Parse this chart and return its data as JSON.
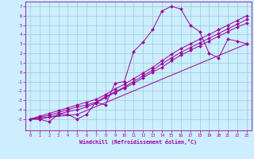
{
  "title": "",
  "xlabel": "Windchill (Refroidissement éolien,°C)",
  "background_color": "#cceeff",
  "grid_color": "#99cccc",
  "line_color": "#990099",
  "xlim": [
    -0.5,
    23.5
  ],
  "ylim": [
    -6.2,
    7.5
  ],
  "xticks": [
    0,
    1,
    2,
    3,
    4,
    5,
    6,
    7,
    8,
    9,
    10,
    11,
    12,
    13,
    14,
    15,
    16,
    17,
    18,
    19,
    20,
    21,
    22,
    23
  ],
  "yticks": [
    -5,
    -4,
    -3,
    -2,
    -1,
    0,
    1,
    2,
    3,
    4,
    5,
    6,
    7
  ],
  "main_line": {
    "x": [
      0,
      1,
      2,
      3,
      4,
      5,
      6,
      7,
      8,
      9,
      10,
      11,
      12,
      13,
      14,
      15,
      16,
      17,
      18,
      19,
      20,
      21,
      22,
      23
    ],
    "y": [
      -5.0,
      -5.0,
      -5.3,
      -4.5,
      -4.5,
      -5.0,
      -4.5,
      -3.2,
      -3.5,
      -1.2,
      -1.0,
      2.2,
      3.2,
      4.5,
      6.5,
      7.0,
      6.7,
      5.0,
      4.3,
      2.0,
      1.5,
      3.5,
      3.3,
      3.0
    ]
  },
  "diag_lines": [
    {
      "x": [
        0,
        1,
        2,
        3,
        4,
        5,
        6,
        7,
        8,
        9,
        10,
        11,
        12,
        13,
        14,
        15,
        16,
        17,
        18,
        19,
        20,
        21,
        22,
        23
      ],
      "y": [
        -5.0,
        -5.0,
        -4.8,
        -4.5,
        -4.2,
        -4.0,
        -3.7,
        -3.3,
        -2.7,
        -2.2,
        -1.7,
        -1.2,
        -0.6,
        -0.0,
        0.5,
        1.2,
        1.8,
        2.3,
        2.8,
        3.3,
        3.8,
        4.3,
        4.8,
        5.2
      ]
    },
    {
      "x": [
        0,
        1,
        2,
        3,
        4,
        5,
        6,
        7,
        8,
        9,
        10,
        11,
        12,
        13,
        14,
        15,
        16,
        17,
        18,
        19,
        20,
        21,
        22,
        23
      ],
      "y": [
        -5.0,
        -4.8,
        -4.6,
        -4.3,
        -4.0,
        -3.7,
        -3.5,
        -3.2,
        -2.6,
        -2.1,
        -1.6,
        -1.0,
        -0.4,
        0.2,
        0.9,
        1.5,
        2.1,
        2.6,
        3.1,
        3.6,
        4.1,
        4.6,
        5.1,
        5.6
      ]
    },
    {
      "x": [
        0,
        1,
        2,
        3,
        4,
        5,
        6,
        7,
        8,
        9,
        10,
        11,
        12,
        13,
        14,
        15,
        16,
        17,
        18,
        19,
        20,
        21,
        22,
        23
      ],
      "y": [
        -5.0,
        -4.7,
        -4.4,
        -4.1,
        -3.8,
        -3.5,
        -3.2,
        -2.9,
        -2.4,
        -1.8,
        -1.3,
        -0.7,
        -0.1,
        0.5,
        1.2,
        1.9,
        2.5,
        3.0,
        3.5,
        4.0,
        4.5,
        5.0,
        5.5,
        6.0
      ]
    },
    {
      "x": [
        0,
        5,
        23
      ],
      "y": [
        -5.0,
        -4.5,
        3.0
      ]
    }
  ]
}
